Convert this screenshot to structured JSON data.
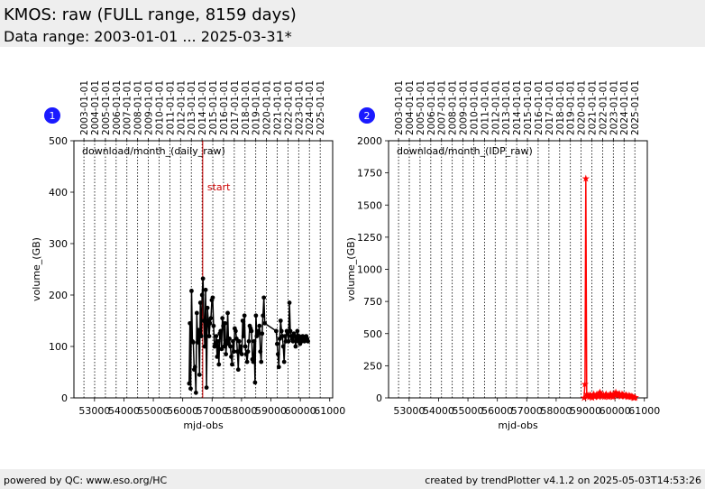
{
  "header": {
    "title": "KMOS: raw (FULL range, 8159 days)",
    "subtitle": "Data range: 2003-01-01 ... 2025-03-31*"
  },
  "footer": {
    "left": "powered by QC: www.eso.org/HC",
    "right": "created by trendPlotter v4.1.2 on 2025-05-03T14:53:26"
  },
  "chart_data": [
    {
      "type": "scatter",
      "badge": "1",
      "title": "download/month_(daily_raw)",
      "xlabel": "mjd-obs",
      "ylabel": "volume_(GB)",
      "xlim": [
        52300,
        61100
      ],
      "ylim": [
        0,
        500
      ],
      "x_ticks": [
        53000,
        54000,
        55000,
        56000,
        57000,
        58000,
        59000,
        60000,
        61000
      ],
      "y_ticks": [
        0,
        100,
        200,
        300,
        400,
        500
      ],
      "top_date_labels": [
        "2003-01-01",
        "2004-01-01",
        "2005-01-01",
        "2006-01-01",
        "2007-01-01",
        "2008-01-01",
        "2009-01-01",
        "2010-01-01",
        "2011-01-01",
        "2012-01-01",
        "2013-01-01",
        "2014-01-01",
        "2015-01-01",
        "2016-01-01",
        "2017-01-01",
        "2018-01-01",
        "2019-01-01",
        "2020-01-01",
        "2021-01-01",
        "2022-01-01",
        "2023-01-01",
        "2024-01-01",
        "2025-01-01"
      ],
      "top_date_mjd": [
        52640,
        53005,
        53371,
        53736,
        54101,
        54466,
        54832,
        55197,
        55562,
        55927,
        56293,
        56658,
        57023,
        57388,
        57754,
        58119,
        58484,
        58849,
        59215,
        59580,
        59945,
        60310,
        60676
      ],
      "annotation": {
        "text": "start",
        "x": 56680,
        "color": "#cc0000"
      },
      "series": [
        {
          "color": "#000000",
          "marker": "circle",
          "x": [
            56220,
            56245,
            56270,
            56300,
            56330,
            56360,
            56390,
            56420,
            56450,
            56480,
            56510,
            56540,
            56570,
            56600,
            56630,
            56660,
            56690,
            56720,
            56750,
            56780,
            56810,
            56840,
            56870,
            56900,
            56930,
            56960,
            56990,
            57020,
            57050,
            57080,
            57110,
            57140,
            57170,
            57200,
            57230,
            57260,
            57290,
            57320,
            57350,
            57380,
            57410,
            57440,
            57470,
            57500,
            57530,
            57560,
            57590,
            57620,
            57650,
            57680,
            57710,
            57740,
            57770,
            57800,
            57830,
            57860,
            57890,
            57920,
            57950,
            57980,
            58010,
            58040,
            58070,
            58100,
            58130,
            58160,
            58190,
            58220,
            58250,
            58280,
            58310,
            58340,
            58370,
            58400,
            58430,
            58460,
            58490,
            58520,
            58550,
            58580,
            58610,
            58640,
            58670,
            58700,
            58730,
            58760,
            58790,
            59180,
            59210,
            59240,
            59270,
            59300,
            59330,
            59360,
            59390,
            59420,
            59450,
            59480,
            59510,
            59540,
            59570,
            59600,
            59630,
            59660,
            59690,
            59720,
            59750,
            59780,
            59810,
            59840,
            59870,
            59900,
            59930,
            59960,
            59990,
            60020,
            60050,
            60080,
            60110,
            60140,
            60170,
            60200,
            60230,
            60260
          ],
          "y": [
            28,
            145,
            18,
            208,
            110,
            108,
            55,
            60,
            10,
            165,
            108,
            132,
            45,
            185,
            120,
            200,
            232,
            150,
            100,
            210,
            20,
            175,
            150,
            120,
            145,
            155,
            190,
            195,
            140,
            100,
            105,
            120,
            80,
            110,
            65,
            125,
            130,
            95,
            155,
            140,
            100,
            145,
            85,
            110,
            165,
            105,
            115,
            100,
            80,
            65,
            110,
            90,
            135,
            130,
            115,
            90,
            55,
            110,
            90,
            100,
            85,
            150,
            120,
            160,
            100,
            85,
            70,
            90,
            110,
            140,
            135,
            130,
            75,
            70,
            110,
            30,
            160,
            120,
            125,
            130,
            140,
            90,
            70,
            125,
            160,
            195,
            145,
            130,
            105,
            85,
            60,
            115,
            150,
            130,
            120,
            100,
            70,
            120,
            110,
            130,
            125,
            110,
            185,
            130,
            120,
            115,
            110,
            125,
            120,
            100,
            115,
            130,
            110,
            120,
            105,
            115,
            110,
            120,
            115,
            110,
            115,
            120,
            115,
            110
          ]
        }
      ]
    },
    {
      "type": "scatter",
      "badge": "2",
      "title": "download/month_(IDP_raw)",
      "xlabel": "mjd-obs",
      "ylabel": "volume_(GB)",
      "xlim": [
        52300,
        61100
      ],
      "ylim": [
        0,
        2000
      ],
      "x_ticks": [
        53000,
        54000,
        55000,
        56000,
        57000,
        58000,
        59000,
        60000,
        61000
      ],
      "y_ticks": [
        0,
        250,
        500,
        750,
        1000,
        1250,
        1500,
        1750,
        2000
      ],
      "top_date_labels": [
        "2003-01-01",
        "2004-01-01",
        "2005-01-01",
        "2006-01-01",
        "2007-01-01",
        "2008-01-01",
        "2009-01-01",
        "2010-01-01",
        "2011-01-01",
        "2012-01-01",
        "2013-01-01",
        "2014-01-01",
        "2015-01-01",
        "2016-01-01",
        "2017-01-01",
        "2018-01-01",
        "2019-01-01",
        "2020-01-01",
        "2021-01-01",
        "2022-01-01",
        "2023-01-01",
        "2024-01-01",
        "2025-01-01"
      ],
      "top_date_mjd": [
        52640,
        53005,
        53371,
        53736,
        54101,
        54466,
        54832,
        55197,
        55562,
        55927,
        56293,
        56658,
        57023,
        57388,
        57754,
        58119,
        58484,
        58849,
        59215,
        59580,
        59945,
        60310,
        60676
      ],
      "series": [
        {
          "color": "#ff0000",
          "marker": "star",
          "x": [
            58950,
            58980,
            59010,
            59040,
            59070,
            59100,
            59130,
            59160,
            59190,
            59220,
            59250,
            59280,
            59310,
            59340,
            59370,
            59400,
            59430,
            59460,
            59490,
            59520,
            59550,
            59580,
            59610,
            59640,
            59670,
            59700,
            59730,
            59760,
            59790,
            59820,
            59850,
            59880,
            59910,
            59940,
            59970,
            60000,
            60030,
            60060,
            60090,
            60120,
            60150,
            60180,
            60210,
            60240,
            60270,
            60300,
            60330,
            60360,
            60390,
            60420,
            60450,
            60480,
            60510,
            60540,
            60570,
            60600,
            60630,
            60660,
            60690
          ],
          "y": [
            5,
            110,
            1710,
            30,
            15,
            20,
            10,
            25,
            15,
            5,
            20,
            30,
            10,
            15,
            25,
            20,
            10,
            35,
            45,
            30,
            20,
            15,
            25,
            10,
            20,
            30,
            15,
            20,
            10,
            25,
            30,
            15,
            20,
            10,
            35,
            25,
            45,
            30,
            20,
            25,
            35,
            20,
            15,
            30,
            25,
            20,
            15,
            20,
            25,
            15,
            10,
            20,
            15,
            10,
            15,
            10,
            5,
            5,
            8
          ]
        }
      ]
    }
  ]
}
